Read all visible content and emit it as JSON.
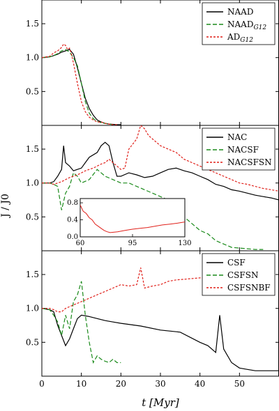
{
  "figure": {
    "xlabel": "t [Myr]",
    "ylabel": "J / J0",
    "x_ticks": [
      "0",
      "10",
      "20",
      "30",
      "40",
      "50"
    ],
    "colors": {
      "black": "#000000",
      "green": "#1a8a1a",
      "red": "#e0201a"
    }
  },
  "chart_data": [
    {
      "type": "line",
      "panel": "top",
      "xlim": [
        0,
        60
      ],
      "ylim": [
        0,
        1.85
      ],
      "yticks": [
        "0.5",
        "1.0",
        "1.5"
      ],
      "legend_position": "top-right",
      "series": [
        {
          "name": "NAAD",
          "label_main": "NAAD",
          "label_sub": "",
          "color": "black",
          "dash": "solid",
          "x": [
            0,
            2,
            3,
            4,
            5,
            6,
            7,
            8,
            9,
            10,
            11,
            12,
            13,
            14,
            15,
            16,
            17,
            18,
            19,
            20
          ],
          "y": [
            1.0,
            1.01,
            1.03,
            1.05,
            1.08,
            1.1,
            1.12,
            1.05,
            0.85,
            0.62,
            0.4,
            0.25,
            0.15,
            0.08,
            0.05,
            0.03,
            0.02,
            0.015,
            0.01,
            0.01
          ]
        },
        {
          "name": "NAAD_G12",
          "label_main": "NAAD",
          "label_sub": "G12",
          "color": "green",
          "dash": "long",
          "x": [
            0,
            2,
            3,
            4,
            5,
            6,
            7,
            8,
            9,
            10,
            11,
            12,
            13,
            14,
            15,
            16,
            17,
            18
          ],
          "y": [
            1.0,
            1.01,
            1.03,
            1.06,
            1.1,
            1.12,
            1.08,
            1.0,
            0.88,
            0.62,
            0.35,
            0.18,
            0.1,
            0.06,
            0.04,
            0.03,
            0.02,
            0.01
          ]
        },
        {
          "name": "AD_G12",
          "label_main": "AD",
          "label_sub": "G12",
          "color": "red",
          "dash": "short",
          "x": [
            0,
            2,
            3,
            4,
            5,
            5.5,
            6,
            6.5,
            7,
            7.5,
            8,
            9,
            10,
            11,
            12,
            13,
            14,
            15,
            16,
            17,
            18,
            19
          ],
          "y": [
            1.0,
            1.02,
            1.07,
            1.1,
            1.15,
            1.2,
            1.18,
            1.12,
            1.14,
            1.05,
            0.92,
            0.62,
            0.35,
            0.2,
            0.12,
            0.08,
            0.05,
            0.05,
            0.03,
            0.02,
            0.01,
            0.01
          ]
        }
      ]
    },
    {
      "type": "line",
      "panel": "middle",
      "xlim": [
        0,
        60
      ],
      "ylim": [
        0,
        1.85
      ],
      "yticks": [
        "0.5",
        "1.0",
        "1.5"
      ],
      "legend_position": "top-right",
      "series": [
        {
          "name": "NAC",
          "label_main": "NAC",
          "label_sub": "",
          "color": "black",
          "dash": "solid",
          "x": [
            0,
            2,
            3,
            4,
            5,
            5.5,
            6,
            7,
            8,
            9,
            10,
            11,
            12,
            14,
            15,
            16,
            17,
            18,
            19,
            20,
            22,
            24,
            26,
            28,
            30,
            32,
            34,
            36,
            38,
            40,
            42,
            44,
            46,
            48,
            50,
            52,
            54,
            56,
            58,
            60
          ],
          "y": [
            1.0,
            1.0,
            1.02,
            1.1,
            1.2,
            1.55,
            1.3,
            1.25,
            1.18,
            1.2,
            1.22,
            1.3,
            1.38,
            1.45,
            1.55,
            1.6,
            1.55,
            1.3,
            1.1,
            1.1,
            1.15,
            1.12,
            1.08,
            1.1,
            1.15,
            1.2,
            1.22,
            1.18,
            1.15,
            1.1,
            1.05,
            0.98,
            0.95,
            0.9,
            0.88,
            0.85,
            0.82,
            0.8,
            0.78,
            0.75
          ]
        },
        {
          "name": "NACSF",
          "label_main": "NACSF",
          "label_sub": "",
          "color": "green",
          "dash": "long",
          "x": [
            0,
            2,
            3,
            4,
            5,
            6,
            7,
            8,
            9,
            10,
            12,
            14,
            16,
            18,
            20,
            22,
            24,
            26,
            28,
            30,
            32,
            34,
            36,
            38,
            40,
            42,
            44,
            46,
            48,
            50,
            52,
            54,
            56
          ],
          "y": [
            1.0,
            1.0,
            0.98,
            0.95,
            0.6,
            0.85,
            0.95,
            1.15,
            1.1,
            1.0,
            1.05,
            1.2,
            1.1,
            1.05,
            1.0,
            1.0,
            0.95,
            0.9,
            0.85,
            0.8,
            0.75,
            0.6,
            0.5,
            0.4,
            0.3,
            0.25,
            0.15,
            0.1,
            0.05,
            0.04,
            0.03,
            0.02,
            0.02
          ]
        },
        {
          "name": "NACSFSN",
          "label_main": "NACSFSN",
          "label_sub": "",
          "color": "red",
          "dash": "short",
          "x": [
            0,
            2,
            3,
            4,
            5,
            6,
            7,
            8,
            9,
            10,
            11,
            12,
            13,
            14,
            15,
            16,
            17,
            18,
            19,
            20,
            21,
            22,
            24,
            25,
            26,
            27,
            28,
            30,
            32,
            34,
            36,
            38,
            40,
            42,
            44,
            46,
            48,
            50,
            52,
            54,
            56,
            58,
            60
          ],
          "y": [
            1.0,
            1.0,
            0.98,
            1.0,
            1.02,
            1.05,
            1.08,
            1.1,
            1.12,
            1.15,
            1.18,
            1.2,
            1.22,
            1.25,
            1.28,
            1.3,
            1.35,
            1.3,
            1.25,
            1.2,
            1.22,
            1.5,
            1.65,
            1.85,
            1.8,
            1.7,
            1.65,
            1.55,
            1.5,
            1.45,
            1.35,
            1.3,
            1.25,
            1.2,
            1.15,
            1.1,
            1.05,
            1.0,
            0.98,
            0.95,
            0.92,
            0.9,
            0.88
          ]
        }
      ],
      "inset": {
        "type": "line",
        "xlim": [
          60,
          130
        ],
        "ylim": [
          0,
          0.9
        ],
        "xticks": [
          "60",
          "95",
          "130"
        ],
        "yticks": [
          "0.0",
          "0.4",
          "0.8"
        ],
        "series": [
          {
            "name": "NACSFSN",
            "color": "red",
            "x": [
              60,
              62,
              64,
              66,
              68,
              70,
              72,
              74,
              76,
              78,
              80,
              85,
              90,
              95,
              100,
              105,
              110,
              115,
              120,
              125,
              130
            ],
            "y": [
              0.75,
              0.6,
              0.55,
              0.45,
              0.4,
              0.3,
              0.25,
              0.2,
              0.15,
              0.12,
              0.1,
              0.12,
              0.15,
              0.18,
              0.2,
              0.22,
              0.25,
              0.28,
              0.3,
              0.32,
              0.35
            ]
          }
        ]
      }
    },
    {
      "type": "line",
      "panel": "bottom",
      "xlim": [
        0,
        60
      ],
      "ylim": [
        0,
        1.85
      ],
      "yticks": [
        "0.5",
        "1.0",
        "1.5"
      ],
      "legend_position": "top-right",
      "series": [
        {
          "name": "CSF",
          "label_main": "CSF",
          "label_sub": "",
          "color": "black",
          "dash": "solid",
          "x": [
            0,
            2,
            3,
            4,
            5,
            6,
            7,
            8,
            9,
            10,
            12,
            14,
            16,
            18,
            20,
            25,
            30,
            35,
            40,
            42,
            44,
            45,
            46,
            48,
            50,
            52,
            54,
            56,
            58,
            60
          ],
          "y": [
            1.0,
            0.98,
            0.95,
            0.75,
            0.6,
            0.45,
            0.55,
            0.7,
            0.85,
            0.9,
            0.88,
            0.85,
            0.82,
            0.8,
            0.78,
            0.74,
            0.68,
            0.65,
            0.5,
            0.45,
            0.35,
            0.9,
            0.4,
            0.2,
            0.12,
            0.1,
            0.08,
            0.08,
            0.08,
            0.08
          ]
        },
        {
          "name": "CSFSN",
          "label_main": "CSFSN",
          "label_sub": "",
          "color": "green",
          "dash": "long",
          "x": [
            0,
            2,
            3,
            4,
            5,
            6,
            7,
            8,
            9,
            10,
            11,
            12,
            13,
            14,
            15,
            16,
            17,
            18,
            19,
            20
          ],
          "y": [
            1.0,
            0.98,
            0.9,
            0.8,
            0.6,
            0.9,
            0.7,
            1.1,
            1.2,
            1.4,
            0.9,
            0.5,
            0.2,
            0.3,
            0.25,
            0.22,
            0.2,
            0.25,
            0.2,
            0.2
          ]
        },
        {
          "name": "CSFSNBF",
          "label_main": "CSFSNBF",
          "label_sub": "",
          "color": "red",
          "dash": "short",
          "x": [
            0,
            2,
            3,
            4,
            5,
            6,
            8,
            10,
            12,
            14,
            16,
            18,
            20,
            22,
            24,
            25,
            26,
            28,
            30,
            32,
            34,
            36,
            38,
            40,
            42,
            44,
            46,
            48,
            50,
            52
          ],
          "y": [
            1.0,
            1.0,
            0.98,
            0.95,
            0.95,
            1.0,
            1.05,
            1.1,
            1.15,
            1.2,
            1.25,
            1.3,
            1.35,
            1.33,
            1.35,
            1.6,
            1.3,
            1.33,
            1.35,
            1.4,
            1.42,
            1.43,
            1.44,
            1.45,
            1.45,
            1.45,
            1.46,
            1.47,
            1.48,
            1.48
          ]
        }
      ]
    }
  ]
}
